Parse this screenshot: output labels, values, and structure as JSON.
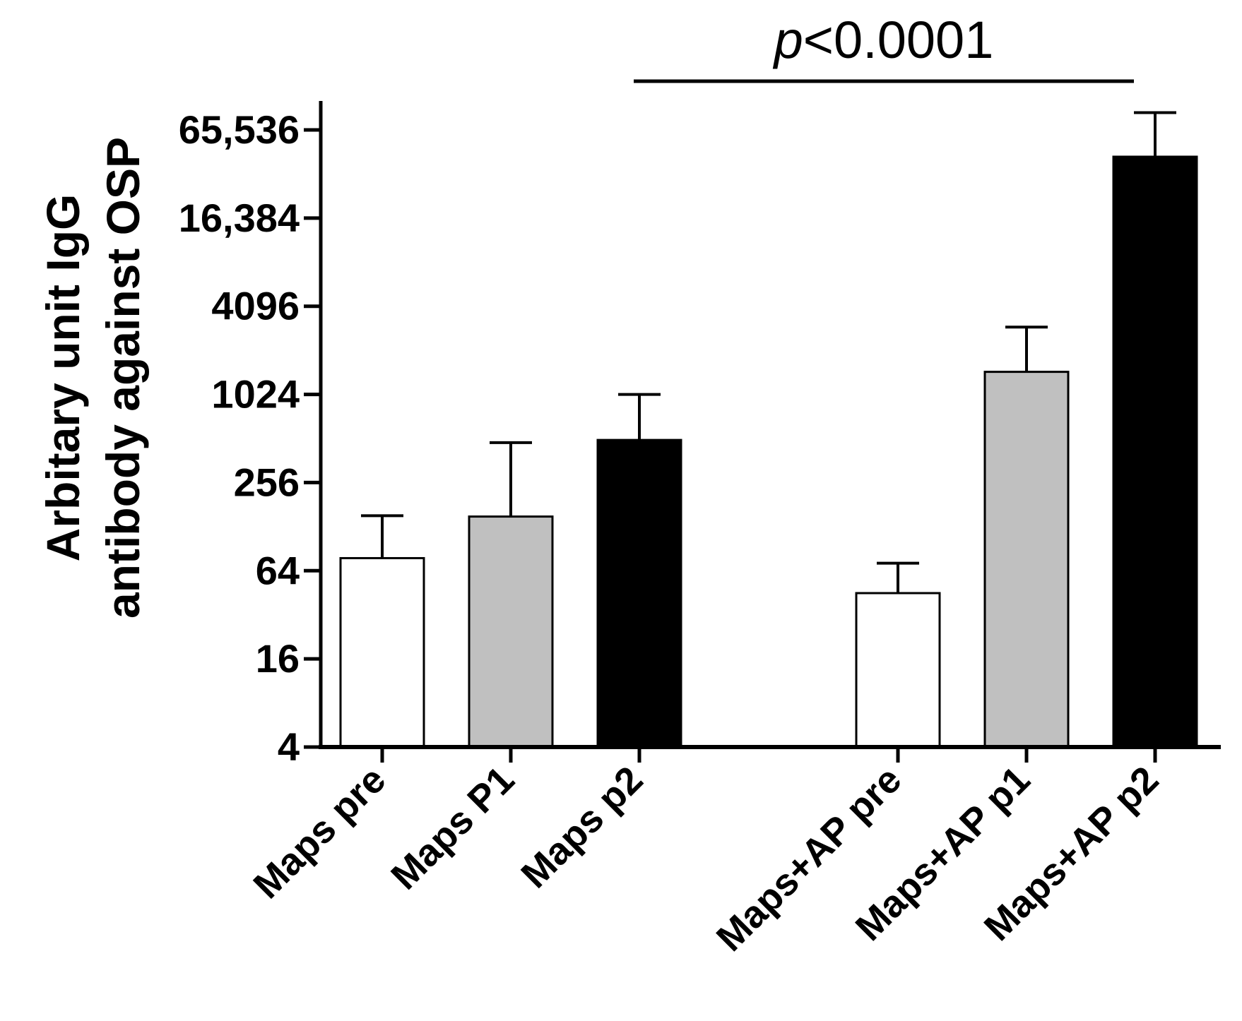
{
  "chart_data": {
    "type": "bar",
    "scale": "log2",
    "ylabel_lines": [
      "Arbitary unit IgG",
      "antibody against OSP"
    ],
    "xlabel": "",
    "ylim": [
      4,
      65536
    ],
    "yticks": [
      {
        "value": 4,
        "label": "4"
      },
      {
        "value": 16,
        "label": "16"
      },
      {
        "value": 64,
        "label": "64"
      },
      {
        "value": 256,
        "label": "256"
      },
      {
        "value": 1024,
        "label": "1024"
      },
      {
        "value": 4096,
        "label": "4096"
      },
      {
        "value": 16384,
        "label": "16,384"
      },
      {
        "value": 65536,
        "label": "65,536"
      }
    ],
    "categories": [
      "Maps pre",
      "Maps P1",
      "Maps p2",
      "Maps+AP pre",
      "Maps+AP p1",
      "Maps+AP p2"
    ],
    "values": [
      78,
      150,
      500,
      45,
      1460,
      43000
    ],
    "error_upper": [
      152,
      480,
      1024,
      72,
      2950,
      86000
    ],
    "fills": [
      "#ffffff",
      "#c0c0c0",
      "#000000",
      "#ffffff",
      "#c0c0c0",
      "#000000"
    ],
    "significance": {
      "label_italic": "p",
      "label_rest": "<0.0001",
      "from_category": 2,
      "to_category": 5
    }
  }
}
